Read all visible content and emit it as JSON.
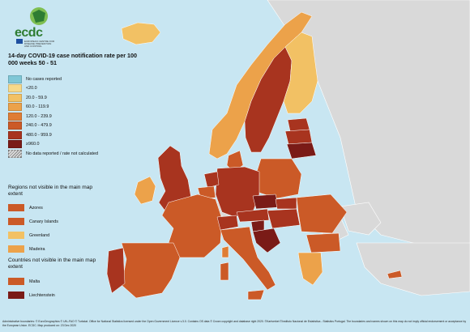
{
  "title": "14-day COVID-19 case notification rate per 100 000 weeks 50 - 51",
  "logo": {
    "word": "ecdc",
    "subtitle": "EUROPEAN CENTRE FOR DISEASE PREVENTION AND CONTROL"
  },
  "legend": [
    {
      "label": "No cases reported",
      "color": "#7fc7d6"
    },
    {
      "label": "<20.0",
      "color": "#f6d98a"
    },
    {
      "label": "20.0 - 59.9",
      "color": "#f2c164"
    },
    {
      "label": "60.0 - 119.9",
      "color": "#eca24a"
    },
    {
      "label": "120.0 - 239.9",
      "color": "#df7d35"
    },
    {
      "label": "240.0 - 479.9",
      "color": "#cb5a27"
    },
    {
      "label": "480.0 - 959.9",
      "color": "#a8341f"
    },
    {
      "label": "≥960.0",
      "color": "#7a1b17"
    },
    {
      "label": "No data reported / rate not calculated",
      "color": "hatch"
    }
  ],
  "regions_title": "Regions not visible in the main map extent",
  "regions": [
    {
      "label": "Azores",
      "color": "#cb5a27"
    },
    {
      "label": "Canary Islands",
      "color": "#cb5a27"
    },
    {
      "label": "Greenland",
      "color": "#f2c164"
    },
    {
      "label": "Madeira",
      "color": "#eca24a"
    }
  ],
  "countries_title": "Countries not visible in the main map extent",
  "countries": [
    {
      "label": "Malta",
      "color": "#cb5a27"
    },
    {
      "label": "Liechtenstein",
      "color": "#7a1b17"
    }
  ],
  "footer": "Administrative boundaries: © EuroGeographics © UN–FAO © Turkstat. Office for National Statistics licensed under the Open Government Licence v.3.0. Contains OS data © Crown copyright and database right 2020. ©Kartverket ©Instituto Nacional de Estatística - Statistics Portugal. The boundaries and names shown on this map do not imply official endorsement or acceptance by the European Union. ECDC. Map produced on: 23 Dec 2020",
  "colors": {
    "sea": "#c8e6f2",
    "non_eu_land": "#d9d9d9"
  }
}
